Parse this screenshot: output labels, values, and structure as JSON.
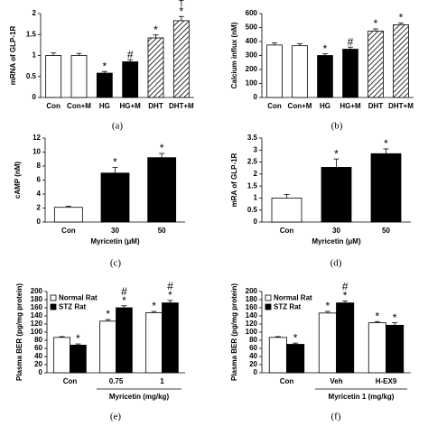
{
  "chart_data": [
    {
      "type": "bar",
      "panel_label": "(a)",
      "ylabel": "mRNA of GLP-1R",
      "categories": [
        "Con",
        "Con+M",
        "HG",
        "HG+M",
        "DHT",
        "DHT+M"
      ],
      "series": [
        {
          "values": [
            1.0,
            1.0,
            0.58,
            0.85,
            1.42,
            1.83
          ],
          "errors": [
            0.06,
            0.05,
            0.04,
            0.05,
            0.07,
            0.1
          ],
          "bar_styles": [
            "open",
            "open",
            "solid",
            "solid",
            "hatched",
            "hatched"
          ],
          "annotations": [
            null,
            null,
            [
              "*"
            ],
            [
              "#"
            ],
            [
              "*"
            ],
            [
              "†",
              "*"
            ]
          ]
        }
      ],
      "ylim": [
        0,
        2
      ],
      "yticks": [
        0,
        0.5,
        1,
        1.5,
        2
      ]
    },
    {
      "type": "bar",
      "panel_label": "(b)",
      "ylabel": "Calcium influx (nM)",
      "categories": [
        "Con",
        "Con+M",
        "HG",
        "HG+M",
        "DHT",
        "DHT+M"
      ],
      "series": [
        {
          "values": [
            375,
            370,
            300,
            345,
            475,
            520
          ],
          "errors": [
            15,
            15,
            12,
            15,
            15,
            12
          ],
          "bar_styles": [
            "open",
            "open",
            "solid",
            "solid",
            "hatched",
            "hatched"
          ],
          "annotations": [
            null,
            null,
            [
              "*"
            ],
            [
              "#"
            ],
            [
              "*"
            ],
            [
              "*"
            ]
          ]
        }
      ],
      "ylim": [
        0,
        600
      ],
      "yticks": [
        0,
        100,
        200,
        300,
        400,
        500,
        600
      ]
    },
    {
      "type": "bar",
      "panel_label": "(c)",
      "ylabel": "cAMP (nM)",
      "xlabel": "Myricetin (μM)",
      "categories": [
        "Con",
        "30",
        "50"
      ],
      "series": [
        {
          "values": [
            2.1,
            7.0,
            9.2
          ],
          "errors": [
            0.15,
            0.8,
            0.6
          ],
          "bar_styles": [
            "open",
            "solid",
            "solid"
          ],
          "annotations": [
            null,
            [
              "*"
            ],
            [
              "*"
            ]
          ]
        }
      ],
      "ylim": [
        0,
        12
      ],
      "yticks": [
        0,
        2,
        4,
        6,
        8,
        10,
        12
      ]
    },
    {
      "type": "bar",
      "panel_label": "(d)",
      "ylabel": "mRA of GLP-1R",
      "xlabel": "Myricetin (μM)",
      "categories": [
        "Con",
        "30",
        "50"
      ],
      "series": [
        {
          "values": [
            1.0,
            2.28,
            2.85
          ],
          "errors": [
            0.15,
            0.35,
            0.2
          ],
          "bar_styles": [
            "open",
            "solid",
            "solid"
          ],
          "annotations": [
            null,
            [
              "*"
            ],
            [
              "*"
            ]
          ]
        }
      ],
      "ylim": [
        0,
        3.5
      ],
      "yticks": [
        0,
        0.5,
        1,
        1.5,
        2,
        2.5,
        3,
        3.5
      ]
    },
    {
      "type": "bar",
      "panel_label": "(e)",
      "ylabel": "Plasma BER (pg/mg protein)",
      "xlabel": "Myricetin (mg/kg)",
      "categories": [
        "Con",
        "0.75",
        "1"
      ],
      "legend": "upper left",
      "series": [
        {
          "name": "Normal Rat",
          "color": "#ffffff",
          "values": [
            87,
            127,
            148
          ],
          "errors": [
            2,
            4,
            3
          ],
          "annotations": [
            null,
            [
              "*"
            ],
            [
              "*"
            ]
          ]
        },
        {
          "name": "STZ Rat",
          "color": "#000000",
          "values": [
            68,
            160,
            172
          ],
          "errors": [
            3,
            5,
            6
          ],
          "annotations": [
            [
              "*"
            ],
            [
              "#",
              "*"
            ],
            [
              "#",
              "*"
            ]
          ]
        }
      ],
      "ylim": [
        0,
        200
      ],
      "yticks": [
        0,
        20,
        40,
        60,
        80,
        100,
        120,
        140,
        160,
        180,
        200
      ]
    },
    {
      "type": "bar",
      "panel_label": "(f)",
      "ylabel": "Plasma BER (pg/mg protein)",
      "xlabel": "Myricetin 1 (mg/kg)",
      "categories": [
        "Con",
        "Veh",
        "H-EX9"
      ],
      "legend": "upper left",
      "series": [
        {
          "name": "Normal Rat",
          "color": "#ffffff",
          "values": [
            87,
            147,
            123
          ],
          "errors": [
            2,
            4,
            3
          ],
          "annotations": [
            null,
            [
              "*"
            ],
            [
              "*"
            ]
          ]
        },
        {
          "name": "STZ Rat",
          "color": "#000000",
          "values": [
            70,
            172,
            117
          ],
          "errors": [
            3,
            5,
            6
          ],
          "annotations": [
            [
              "*"
            ],
            [
              "#",
              "*"
            ],
            [
              "*"
            ]
          ]
        }
      ],
      "ylim": [
        0,
        200
      ],
      "yticks": [
        0,
        20,
        40,
        60,
        80,
        100,
        120,
        140,
        160,
        180,
        200
      ]
    }
  ]
}
